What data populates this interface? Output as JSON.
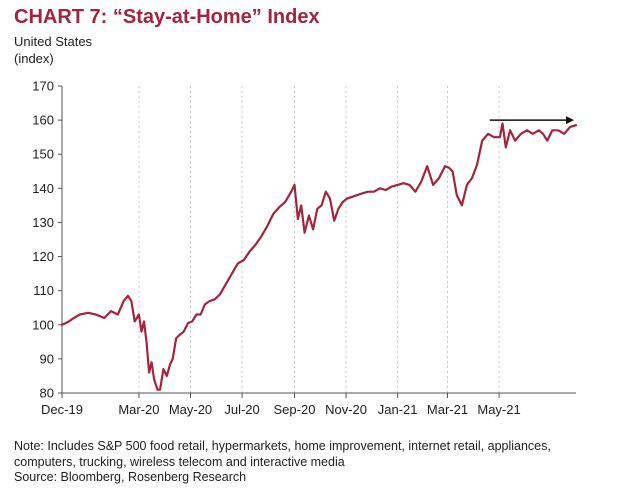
{
  "title": "CHART 7: “Stay-at-Home” Index",
  "subtitle_line1": "United States",
  "subtitle_line2": "(index)",
  "note_line1": "Note: Includes S&P 500 food retail, hypermarkets, home improvement, internet retail, appliances,",
  "note_line2": "computers, trucking, wireless telecom and interactive media",
  "source": "Source: Bloomberg, Rosenberg Research",
  "colors": {
    "series": "#a3253d",
    "title": "#a3253d",
    "arrow": "#111111",
    "grid": "#c8c8c8"
  },
  "chart_data": {
    "type": "line",
    "title": "CHART 7: “Stay-at-Home” Index",
    "xlabel": "",
    "ylabel": "",
    "ylim": [
      80,
      170
    ],
    "yticks": [
      80,
      90,
      100,
      110,
      120,
      130,
      140,
      150,
      160,
      170
    ],
    "xlim": [
      "2019-12-01",
      "2021-07-31"
    ],
    "xticks": [
      {
        "label": "Dec-19",
        "date": "2019-12-01"
      },
      {
        "label": "Mar-20",
        "date": "2020-03-01"
      },
      {
        "label": "May-20",
        "date": "2020-05-01"
      },
      {
        "label": "Jul-20",
        "date": "2020-07-01"
      },
      {
        "label": "Sep-20",
        "date": "2020-09-01"
      },
      {
        "label": "Nov-20",
        "date": "2020-11-01"
      },
      {
        "label": "Jan-21",
        "date": "2021-01-01"
      },
      {
        "label": "Mar-21",
        "date": "2021-03-01"
      },
      {
        "label": "May-21",
        "date": "2021-05-01"
      }
    ],
    "grid": "vertical dotted",
    "legend": "none",
    "annotation": "arrow at 160 pointing right",
    "series": [
      {
        "x": [
          "2019-12-01",
          "2019-12-08",
          "2019-12-15",
          "2019-12-22",
          "2020-01-01",
          "2020-01-10",
          "2020-01-20",
          "2020-01-28",
          "2020-02-05",
          "2020-02-12",
          "2020-02-17",
          "2020-02-21",
          "2020-02-25",
          "2020-03-01",
          "2020-03-04",
          "2020-03-07",
          "2020-03-10",
          "2020-03-13",
          "2020-03-16",
          "2020-03-19",
          "2020-03-23",
          "2020-03-26",
          "2020-03-30",
          "2020-04-03",
          "2020-04-07",
          "2020-04-10",
          "2020-04-14",
          "2020-04-18",
          "2020-04-23",
          "2020-04-28",
          "2020-05-03",
          "2020-05-08",
          "2020-05-13",
          "2020-05-18",
          "2020-05-24",
          "2020-05-30",
          "2020-06-05",
          "2020-06-12",
          "2020-06-19",
          "2020-06-26",
          "2020-07-03",
          "2020-07-10",
          "2020-07-17",
          "2020-07-24",
          "2020-07-31",
          "2020-08-07",
          "2020-08-14",
          "2020-08-21",
          "2020-08-28",
          "2020-09-01",
          "2020-09-05",
          "2020-09-09",
          "2020-09-13",
          "2020-09-18",
          "2020-09-23",
          "2020-09-28",
          "2020-10-03",
          "2020-10-08",
          "2020-10-13",
          "2020-10-18",
          "2020-10-23",
          "2020-10-28",
          "2020-11-02",
          "2020-11-08",
          "2020-11-14",
          "2020-11-20",
          "2020-11-27",
          "2020-12-04",
          "2020-12-11",
          "2020-12-18",
          "2020-12-25",
          "2021-01-01",
          "2021-01-08",
          "2021-01-15",
          "2021-01-22",
          "2021-01-29",
          "2021-02-05",
          "2021-02-12",
          "2021-02-19",
          "2021-02-26",
          "2021-03-03",
          "2021-03-07",
          "2021-03-12",
          "2021-03-18",
          "2021-03-24",
          "2021-03-30",
          "2021-04-05",
          "2021-04-11",
          "2021-04-18",
          "2021-04-25",
          "2021-05-02",
          "2021-05-05",
          "2021-05-09",
          "2021-05-14",
          "2021-05-20",
          "2021-05-27",
          "2021-06-03",
          "2021-06-10",
          "2021-06-17",
          "2021-06-22",
          "2021-06-27",
          "2021-07-03",
          "2021-07-10",
          "2021-07-17",
          "2021-07-24",
          "2021-07-31"
        ],
        "values": [
          100,
          100.8,
          102,
          103,
          103.5,
          103,
          102,
          104,
          103,
          107,
          108.5,
          107,
          101,
          103,
          98,
          101,
          95,
          86,
          89,
          84,
          81,
          81,
          87,
          85,
          88.5,
          90,
          96,
          97,
          98,
          100.5,
          101,
          103,
          103,
          106,
          107,
          107.5,
          109,
          112,
          115,
          118,
          119,
          121.5,
          123.5,
          126,
          129,
          132.5,
          134.5,
          136,
          139,
          141,
          131,
          135,
          127,
          132,
          128,
          134,
          135,
          139,
          137,
          130.5,
          134,
          136,
          137,
          137.5,
          138,
          138.5,
          139,
          139,
          140,
          139.5,
          140.5,
          141,
          141.5,
          141,
          139,
          142,
          146.5,
          141,
          143,
          146.5,
          146,
          145,
          138,
          135,
          141,
          143,
          147,
          154,
          156,
          155,
          155,
          159,
          152,
          157,
          154,
          156,
          157,
          156,
          157,
          156,
          154,
          157,
          157,
          156,
          158,
          158.5
        ]
      }
    ]
  }
}
